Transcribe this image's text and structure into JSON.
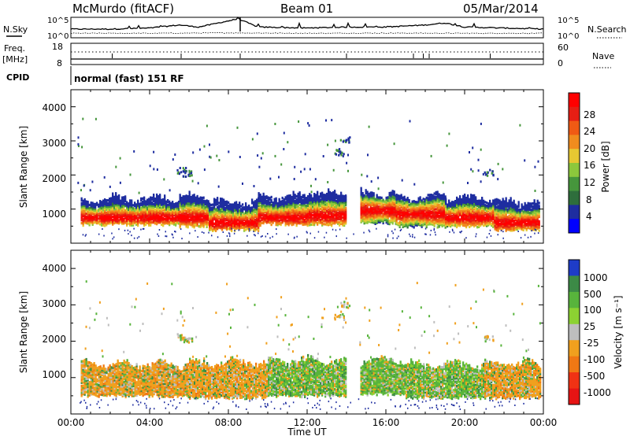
{
  "header": {
    "station": "McMurdo (fitACF)",
    "beam": "Beam 01",
    "date": "05/Mar/2014"
  },
  "noise_panel": {
    "left_label": "N.Sky",
    "right_label": "N.Search",
    "y_ticks": [
      "10^5",
      "10^0"
    ]
  },
  "freq_panel": {
    "left_label_1": "Freq.",
    "left_label_2": "[MHz]",
    "left_ticks": [
      "18",
      "8"
    ],
    "right_label": "Nave",
    "right_ticks": [
      "60",
      "0"
    ]
  },
  "cpid_panel": {
    "label": "CPID",
    "mode_text": "normal (fast) 151 RF"
  },
  "power_panel": {
    "ylabel": "Slant Range [km]",
    "y_ticks": [
      "4000",
      "3000",
      "2000",
      "1000"
    ],
    "colorbar_label": "Power [dB]",
    "colorbar_ticks": [
      "28",
      "24",
      "20",
      "16",
      "12",
      "8",
      "4"
    ],
    "colors": [
      "#0000ff",
      "#1e2da0",
      "#2e6e3c",
      "#46963c",
      "#8cc83c",
      "#e6c832",
      "#f08c1e",
      "#f05a14",
      "#e61e14",
      "#ff0000"
    ]
  },
  "velocity_panel": {
    "ylabel": "Slant Range [km]",
    "y_ticks": [
      "4000",
      "3000",
      "2000",
      "1000"
    ],
    "colorbar_label": "Velocity [m s⁻¹]",
    "colorbar_ticks": [
      "1000",
      "500",
      "100",
      "25",
      "-25",
      "-100",
      "-500",
      "-1000"
    ],
    "colors": [
      "#1e3cc8",
      "#3c8a46",
      "#58b43c",
      "#8cd232",
      "#bebebe",
      "#f0a01e",
      "#f07814",
      "#f03214",
      "#e61414"
    ]
  },
  "time_axis": {
    "xlabel": "Time UT",
    "ticks": [
      "00:00",
      "04:00",
      "08:00",
      "12:00",
      "16:00",
      "20:00",
      "00:00"
    ]
  },
  "chart_data": [
    {
      "type": "line",
      "title": "N.Sky / N.Search",
      "x_range": [
        0,
        24
      ],
      "series": [
        {
          "name": "N.Sky",
          "x": [
            0,
            2,
            4,
            5.5,
            6.5,
            8.5,
            9.5,
            12,
            14,
            16,
            18,
            19,
            20,
            22,
            24
          ],
          "y": [
            0.4,
            0.4,
            0.45,
            0.6,
            0.5,
            0.9,
            0.5,
            0.45,
            0.5,
            0.5,
            0.6,
            0.7,
            0.5,
            0.45,
            0.4
          ]
        },
        {
          "name": "N.Search",
          "x": [
            0,
            4,
            8,
            12,
            16,
            20,
            24
          ],
          "y": [
            0.2,
            0.2,
            0.22,
            0.2,
            0.21,
            0.2,
            0.2
          ]
        }
      ]
    },
    {
      "type": "heatmap",
      "title": "Power",
      "x_range": [
        0,
        24
      ],
      "y_range": [
        0,
        4500
      ],
      "colorbar_range": [
        0,
        30
      ],
      "echo_bands": [
        {
          "t_start": 0.5,
          "t_end": 1.2,
          "r_low": 600,
          "r_high": 1200,
          "r_core": 800
        },
        {
          "t_start": 1.2,
          "t_end": 5.5,
          "r_low": 600,
          "r_high": 1350,
          "r_core": 800
        },
        {
          "t_start": 5.5,
          "t_end": 7.0,
          "r_low": 550,
          "r_high": 1400,
          "r_core": 800
        },
        {
          "t_start": 7.0,
          "t_end": 9.5,
          "r_low": 450,
          "r_high": 1250,
          "r_core": 650
        },
        {
          "t_start": 9.5,
          "t_end": 12.0,
          "r_low": 600,
          "r_high": 1400,
          "r_core": 800
        },
        {
          "t_start": 12.0,
          "t_end": 14.0,
          "r_low": 600,
          "r_high": 1500,
          "r_core": 850
        },
        {
          "t_start": 14.7,
          "t_end": 16.5,
          "r_low": 650,
          "r_high": 1500,
          "r_core": 1000
        },
        {
          "t_start": 16.5,
          "t_end": 19.0,
          "r_low": 550,
          "r_high": 1400,
          "r_core": 900
        },
        {
          "t_start": 19.0,
          "t_end": 21.5,
          "r_low": 550,
          "r_high": 1350,
          "r_core": 800
        },
        {
          "t_start": 21.5,
          "t_end": 23.8,
          "r_low": 450,
          "r_high": 1250,
          "r_core": 650
        }
      ]
    },
    {
      "type": "heatmap",
      "title": "Velocity",
      "x_range": [
        0,
        24
      ],
      "y_range": [
        0,
        4500
      ],
      "colorbar_range": [
        -1000,
        1000
      ],
      "echo_bands": [
        {
          "t_start": 0.5,
          "t_end": 6.0,
          "r_low": 550,
          "r_high": 1400,
          "dominant": "orange"
        },
        {
          "t_start": 6.0,
          "t_end": 10.0,
          "r_low": 500,
          "r_high": 1450,
          "dominant": "orange"
        },
        {
          "t_start": 10.0,
          "t_end": 14.0,
          "r_low": 550,
          "r_high": 1500,
          "dominant": "green"
        },
        {
          "t_start": 14.7,
          "t_end": 17.0,
          "r_low": 600,
          "r_high": 1500,
          "dominant": "green"
        },
        {
          "t_start": 17.0,
          "t_end": 21.0,
          "r_low": 500,
          "r_high": 1400,
          "dominant": "green"
        },
        {
          "t_start": 21.0,
          "t_end": 23.8,
          "r_low": 500,
          "r_high": 1400,
          "dominant": "orange"
        }
      ]
    }
  ]
}
